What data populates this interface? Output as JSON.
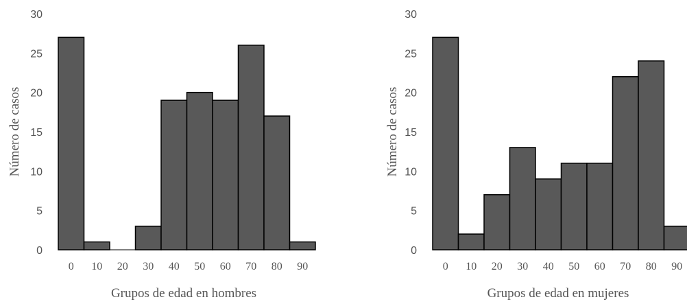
{
  "colors": {
    "bar_fill": "#595959",
    "bar_stroke": "#000000",
    "text": "#555555"
  },
  "chart_data": [
    {
      "type": "bar",
      "title": "",
      "xlabel": "Grupos de edad en hombres",
      "ylabel": "Número de casos",
      "categories": [
        "0",
        "10",
        "20",
        "30",
        "40",
        "50",
        "60",
        "70",
        "80",
        "90"
      ],
      "values": [
        27,
        1,
        0,
        3,
        19,
        20,
        19,
        26,
        17,
        1
      ],
      "yticks": [
        "0",
        "5",
        "10",
        "15",
        "20",
        "25",
        "30"
      ],
      "ylim": [
        0,
        30
      ],
      "grid": false,
      "legend": "none"
    },
    {
      "type": "bar",
      "title": "",
      "xlabel": "Grupos de edad en mujeres",
      "ylabel": "Número de casos",
      "categories": [
        "0",
        "10",
        "20",
        "30",
        "40",
        "50",
        "60",
        "70",
        "80",
        "90"
      ],
      "values": [
        27,
        2,
        7,
        13,
        9,
        11,
        11,
        22,
        24,
        3
      ],
      "yticks": [
        "0",
        "5",
        "10",
        "15",
        "20",
        "25",
        "30"
      ],
      "ylim": [
        0,
        30
      ],
      "grid": false,
      "legend": "none"
    }
  ]
}
